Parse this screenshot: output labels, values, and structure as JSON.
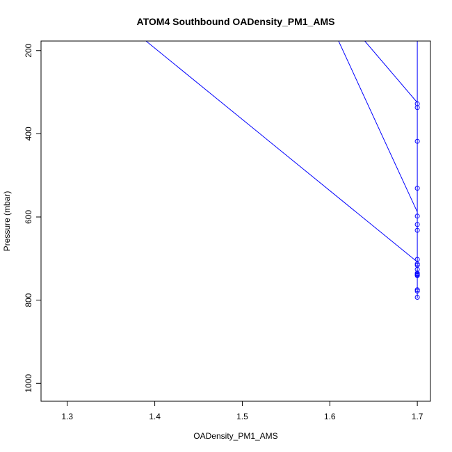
{
  "chart_data": {
    "type": "line",
    "title": "ATOM4 Southbound OADensity_PM1_AMS",
    "xlabel": "OADensity_PM1_AMS",
    "ylabel": "Pressure (mbar)",
    "xlim": [
      1.27,
      1.715
    ],
    "ylim": [
      1043,
      177
    ],
    "y_reversed": true,
    "x_ticks": [
      1.3,
      1.4,
      1.5,
      1.6,
      1.7
    ],
    "x_tick_labels": [
      "1.3",
      "1.4",
      "1.5",
      "1.6",
      "1.7"
    ],
    "y_ticks": [
      200,
      400,
      600,
      800,
      1000
    ],
    "y_tick_labels": [
      "200",
      "400",
      "600",
      "800",
      "1000"
    ],
    "color": "#0000ff",
    "marker": "open-circle",
    "grid": false,
    "legend": "none",
    "segments": [
      {
        "x": [
          1.7,
          1.39
        ],
        "y": [
          708,
          177
        ]
      },
      {
        "x": [
          1.7,
          1.61
        ],
        "y": [
          588,
          177
        ]
      },
      {
        "x": [
          1.7,
          1.64
        ],
        "y": [
          325,
          177
        ]
      },
      {
        "x": [
          1.7,
          1.7
        ],
        "y": [
          177,
          795
        ]
      }
    ],
    "points": {
      "x": [
        1.7,
        1.7,
        1.7,
        1.7,
        1.7,
        1.7,
        1.7,
        1.7,
        1.7,
        1.7,
        1.7,
        1.7,
        1.7,
        1.7,
        1.7,
        1.7,
        1.7,
        1.7
      ],
      "y": [
        328,
        337,
        418,
        531,
        598,
        618,
        632,
        702,
        713,
        716,
        726,
        735,
        737,
        739,
        741,
        775,
        778,
        793
      ]
    }
  }
}
